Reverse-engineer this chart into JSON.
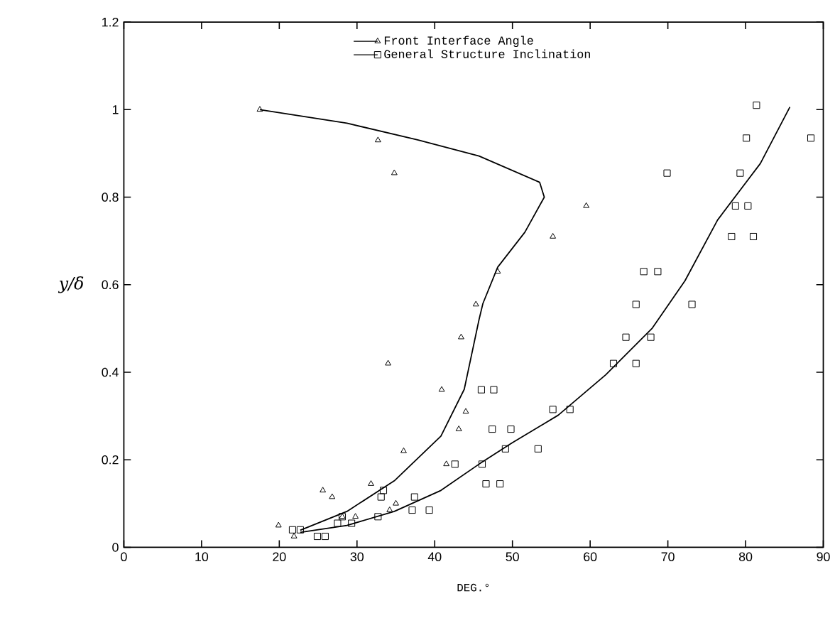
{
  "chart_data": {
    "type": "scatter",
    "xlabel": "DEG.°",
    "ylabel": "y/δ",
    "xlim": [
      0,
      90
    ],
    "ylim": [
      0,
      1.2
    ],
    "xticks": [
      0,
      10,
      20,
      30,
      40,
      50,
      60,
      70,
      80,
      90
    ],
    "yticks": [
      0,
      0.2,
      0.4,
      0.6,
      0.8,
      1,
      1.2
    ],
    "grid": false,
    "legend": "top",
    "series": [
      {
        "name": "Front Interface Angle",
        "color": "#000000",
        "marker": "triangle",
        "x": [
          17.5,
          32.7,
          34.8,
          59.5,
          55.2,
          48.1,
          45.3,
          43.4,
          34.0,
          40.9,
          44.0,
          43.1,
          36.0,
          41.5,
          31.8,
          25.6,
          26.8,
          35.0,
          34.2,
          29.8,
          28.1,
          19.9,
          21.9
        ],
        "values": [
          1.0,
          0.93,
          0.855,
          0.78,
          0.71,
          0.63,
          0.555,
          0.48,
          0.42,
          0.36,
          0.31,
          0.27,
          0.22,
          0.19,
          0.145,
          0.13,
          0.115,
          0.1,
          0.085,
          0.07,
          0.07,
          0.05,
          0.025
        ]
      },
      {
        "name": "General Structure Inclination",
        "color": "#000000",
        "marker": "square",
        "x": [
          81.4,
          80.1,
          88.4,
          69.9,
          79.3,
          78.7,
          80.3,
          78.2,
          81.0,
          66.9,
          68.7,
          65.9,
          73.1,
          64.6,
          67.8,
          63.0,
          65.9,
          46.0,
          47.6,
          55.2,
          57.4,
          47.4,
          49.8,
          49.1,
          53.3,
          46.1,
          46.6,
          48.4,
          42.6,
          33.4,
          33.1,
          37.4,
          37.1,
          39.3,
          32.7,
          28.1,
          27.5,
          29.3,
          21.7,
          22.7,
          24.9,
          25.9
        ],
        "values": [
          1.01,
          0.935,
          0.935,
          0.855,
          0.855,
          0.78,
          0.78,
          0.71,
          0.71,
          0.63,
          0.63,
          0.555,
          0.555,
          0.48,
          0.48,
          0.42,
          0.42,
          0.36,
          0.36,
          0.315,
          0.315,
          0.27,
          0.27,
          0.225,
          0.225,
          0.19,
          0.145,
          0.145,
          0.19,
          0.13,
          0.115,
          0.115,
          0.085,
          0.085,
          0.07,
          0.07,
          0.055,
          0.055,
          0.04,
          0.04,
          0.025,
          0.025
        ]
      },
      {
        "type": "line",
        "color": "#000000",
        "marker": "none",
        "line_style": "solid",
        "x": [
          22.7,
          28.7,
          34.8,
          40.8,
          43.8,
          45.7,
          46.2,
          48.1,
          51.6,
          54.1,
          53.5,
          45.7,
          37.8,
          28.7,
          17.5
        ],
        "values": [
          0.039,
          0.082,
          0.152,
          0.254,
          0.361,
          0.52,
          0.557,
          0.64,
          0.72,
          0.8,
          0.834,
          0.894,
          0.931,
          0.969,
          1.0
        ]
      },
      {
        "type": "line",
        "color": "#000000",
        "marker": "none",
        "line_style": "solid",
        "x": [
          22.7,
          28.7,
          34.8,
          40.8,
          45.7,
          49.9,
          55.9,
          62.0,
          68.0,
          72.2,
          76.4,
          81.9,
          85.7
        ],
        "values": [
          0.034,
          0.05,
          0.082,
          0.13,
          0.19,
          0.238,
          0.302,
          0.394,
          0.501,
          0.609,
          0.748,
          0.877,
          1.006
        ]
      }
    ]
  }
}
